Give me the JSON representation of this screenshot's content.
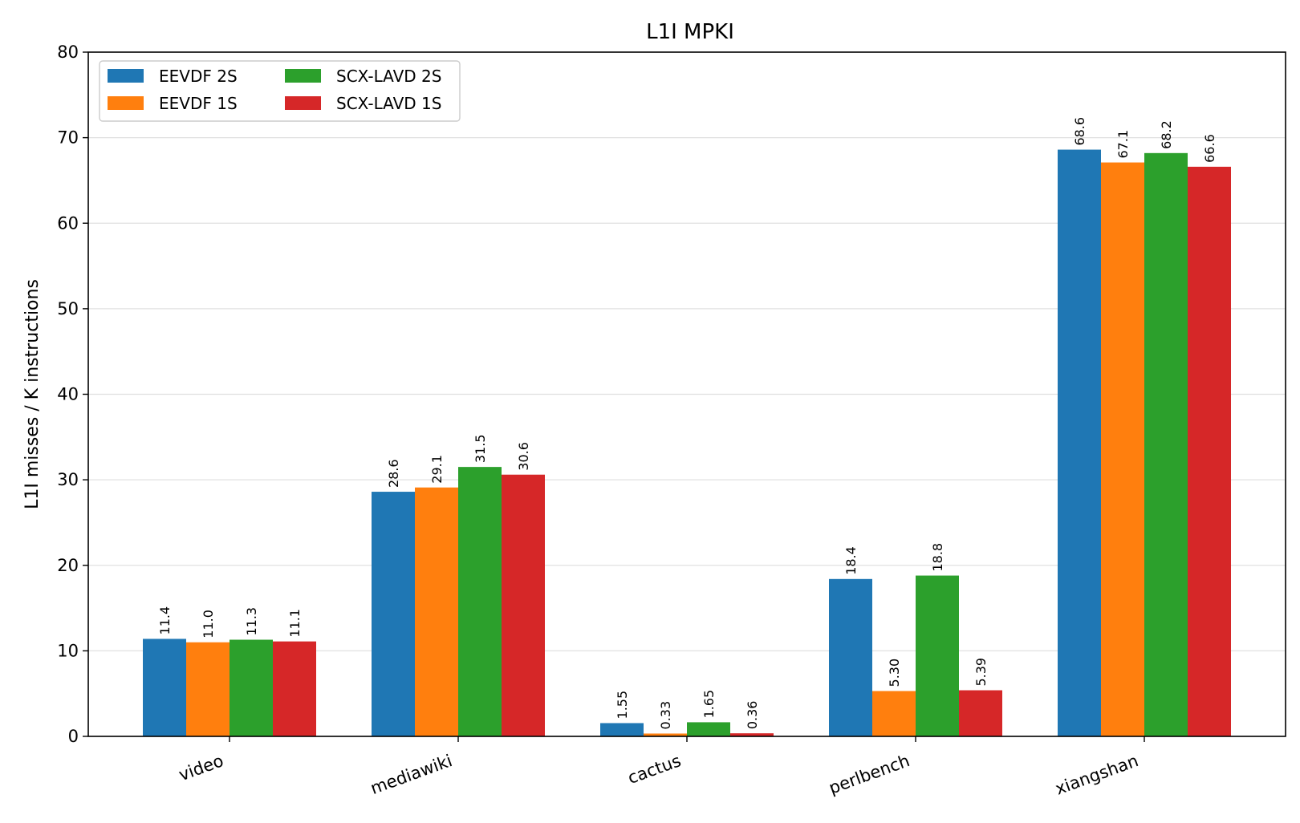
{
  "chart_data": {
    "type": "bar",
    "title": "L1I MPKI",
    "xlabel": "",
    "ylabel": "L1I misses / K instructions",
    "ylim": [
      0,
      80
    ],
    "yticks": [
      0,
      10,
      20,
      30,
      40,
      50,
      60,
      70,
      80
    ],
    "grid": "y",
    "legend_placement": "top-left",
    "legend_columns": 2,
    "categories": [
      "video",
      "mediawiki",
      "cactus",
      "perlbench",
      "xiangshan"
    ],
    "series": [
      {
        "name": "EEVDF 2S",
        "color": "#1f77b4",
        "values": [
          11.4,
          28.6,
          1.55,
          18.4,
          68.6
        ],
        "labels": [
          "11.4",
          "28.6",
          "1.55",
          "18.4",
          "68.6"
        ]
      },
      {
        "name": "EEVDF 1S",
        "color": "#ff7f0e",
        "values": [
          11.0,
          29.1,
          0.33,
          5.3,
          67.1
        ],
        "labels": [
          "11.0",
          "29.1",
          "0.33",
          "5.30",
          "67.1"
        ]
      },
      {
        "name": "SCX-LAVD 2S",
        "color": "#2ca02c",
        "values": [
          11.3,
          31.5,
          1.65,
          18.8,
          68.2
        ],
        "labels": [
          "11.3",
          "31.5",
          "1.65",
          "18.8",
          "68.2"
        ]
      },
      {
        "name": "SCX-LAVD 1S",
        "color": "#d62728",
        "values": [
          11.1,
          30.6,
          0.36,
          5.39,
          66.6
        ],
        "labels": [
          "11.1",
          "30.6",
          "0.36",
          "5.39",
          "66.6"
        ]
      }
    ]
  }
}
